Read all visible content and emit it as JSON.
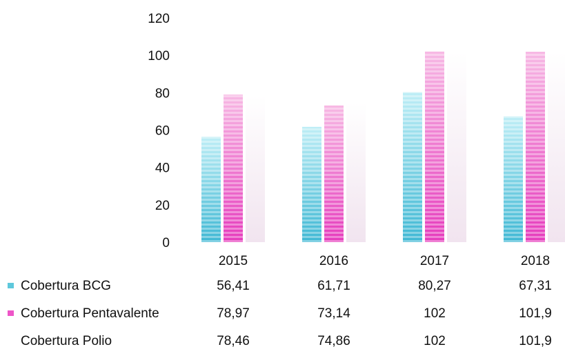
{
  "chart_data": {
    "type": "bar",
    "categories": [
      "2015",
      "2016",
      "2017",
      "2018"
    ],
    "ylim": [
      0,
      120
    ],
    "yticks": [
      0,
      20,
      40,
      60,
      80,
      100,
      120
    ],
    "grid": false,
    "legend": "data-table-bottom",
    "title": "",
    "xlabel": "",
    "ylabel": "",
    "series": [
      {
        "name": "Cobertura BCG",
        "values": [
          56.41,
          61.71,
          80.27,
          67.31
        ],
        "labels": [
          "56,41",
          "61,71",
          "80,27",
          "67,31"
        ],
        "color": "#5ec8dc"
      },
      {
        "name": "Cobertura Pentavalente",
        "values": [
          78.97,
          73.14,
          102,
          101.9
        ],
        "labels": [
          "78,97",
          "73,14",
          "102",
          "101,9"
        ],
        "color": "#ee55c8"
      },
      {
        "name": "Cobertura Polio",
        "values": [
          78.46,
          74.86,
          102,
          101.9
        ],
        "labels": [
          "78,46",
          "74,86",
          "102",
          "101,9"
        ],
        "color": "#f0e8f0"
      }
    ]
  }
}
